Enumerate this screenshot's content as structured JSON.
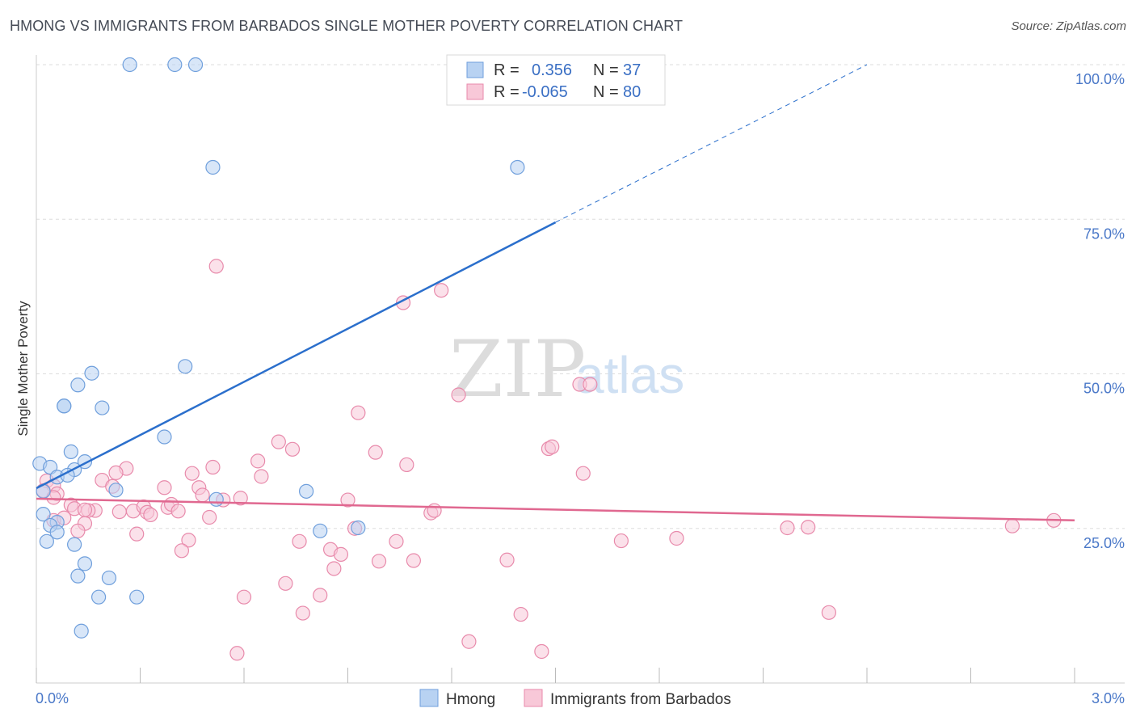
{
  "header": {
    "title": "HMONG VS IMMIGRANTS FROM BARBADOS SINGLE MOTHER POVERTY CORRELATION CHART",
    "source": "Source: ZipAtlas.com"
  },
  "watermark": {
    "zip": "ZIP",
    "atlas": "atlas"
  },
  "colors": {
    "hmong_fill": "#b8d2f2",
    "hmong_stroke": "#6f9fdc",
    "hmong_line": "#2b6fcc",
    "barbados_fill": "#f8c8d8",
    "barbados_stroke": "#e88aab",
    "barbados_line": "#e06890",
    "tick_label": "#4a78c8",
    "grid": "#dddddd"
  },
  "legend": {
    "rows": [
      {
        "r_label": "R =",
        "r_value": "0.356",
        "n_label": "N =",
        "n_value": "37"
      },
      {
        "r_label": "R =",
        "r_value": "-0.065",
        "n_label": "N =",
        "n_value": "80"
      }
    ]
  },
  "chart_data": {
    "type": "scatter",
    "title": "HMONG VS IMMIGRANTS FROM BARBADOS SINGLE MOTHER POVERTY CORRELATION CHART",
    "xlabel": "",
    "ylabel": "Single Mother Poverty",
    "xlim": [
      0,
      3.0
    ],
    "ylim": [
      0,
      105
    ],
    "x_tick_labels": [
      "0.0%",
      "3.0%"
    ],
    "y_ticks": [
      25,
      50,
      75,
      100
    ],
    "y_tick_labels": [
      "25.0%",
      "50.0%",
      "75.0%",
      "100.0%"
    ],
    "grid": true,
    "legend_position": "top-center",
    "series": [
      {
        "name": "Hmong",
        "r": 0.356,
        "n": 37,
        "trend": {
          "x": [
            0.0,
            1.5
          ],
          "y": [
            31.5,
            74.5
          ],
          "dashed_x": [
            1.5,
            2.4
          ],
          "dashed_y": [
            74.5,
            100.0
          ]
        },
        "points": [
          [
            0.27,
            100.0
          ],
          [
            0.4,
            100.0
          ],
          [
            0.46,
            100.0
          ],
          [
            0.51,
            83.4
          ],
          [
            1.39,
            83.4
          ],
          [
            0.43,
            51.2
          ],
          [
            0.16,
            50.1
          ],
          [
            0.12,
            48.2
          ],
          [
            0.08,
            44.8
          ],
          [
            0.08,
            44.8
          ],
          [
            0.19,
            44.5
          ],
          [
            0.37,
            39.8
          ],
          [
            0.1,
            37.4
          ],
          [
            0.01,
            35.5
          ],
          [
            0.14,
            35.8
          ],
          [
            0.04,
            34.9
          ],
          [
            0.11,
            34.5
          ],
          [
            0.06,
            33.3
          ],
          [
            0.09,
            33.6
          ],
          [
            0.02,
            31.0
          ],
          [
            0.23,
            31.2
          ],
          [
            0.78,
            31.0
          ],
          [
            0.52,
            29.7
          ],
          [
            0.02,
            27.3
          ],
          [
            0.06,
            26.0
          ],
          [
            0.04,
            25.5
          ],
          [
            0.06,
            24.4
          ],
          [
            0.82,
            24.6
          ],
          [
            0.93,
            25.1
          ],
          [
            0.03,
            22.9
          ],
          [
            0.11,
            22.4
          ],
          [
            0.14,
            19.3
          ],
          [
            0.12,
            17.3
          ],
          [
            0.21,
            17.0
          ],
          [
            0.18,
            13.9
          ],
          [
            0.29,
            13.9
          ],
          [
            0.13,
            8.4
          ]
        ]
      },
      {
        "name": "Immigrants from Barbados",
        "r": -0.065,
        "n": 80,
        "trend": {
          "x": [
            0.0,
            3.0
          ],
          "y": [
            29.8,
            26.3
          ]
        },
        "points": [
          [
            0.52,
            67.4
          ],
          [
            1.17,
            63.5
          ],
          [
            1.06,
            61.5
          ],
          [
            1.57,
            48.3
          ],
          [
            1.6,
            48.3
          ],
          [
            1.22,
            46.6
          ],
          [
            0.93,
            43.7
          ],
          [
            0.7,
            39.0
          ],
          [
            0.74,
            37.8
          ],
          [
            0.98,
            37.3
          ],
          [
            1.48,
            37.9
          ],
          [
            1.49,
            38.2
          ],
          [
            0.64,
            35.9
          ],
          [
            0.51,
            34.9
          ],
          [
            0.26,
            34.7
          ],
          [
            1.07,
            35.3
          ],
          [
            0.23,
            34.0
          ],
          [
            0.45,
            33.9
          ],
          [
            0.65,
            33.4
          ],
          [
            0.19,
            32.8
          ],
          [
            1.58,
            33.9
          ],
          [
            0.03,
            32.7
          ],
          [
            0.05,
            31.9
          ],
          [
            0.37,
            31.6
          ],
          [
            0.47,
            31.6
          ],
          [
            0.02,
            31.1
          ],
          [
            0.22,
            31.8
          ],
          [
            0.06,
            30.6
          ],
          [
            0.05,
            30.0
          ],
          [
            0.48,
            30.4
          ],
          [
            0.54,
            29.6
          ],
          [
            0.59,
            29.9
          ],
          [
            0.9,
            29.6
          ],
          [
            0.1,
            28.8
          ],
          [
            0.11,
            28.2
          ],
          [
            0.17,
            27.9
          ],
          [
            0.24,
            27.7
          ],
          [
            0.28,
            27.8
          ],
          [
            0.31,
            28.5
          ],
          [
            0.32,
            27.6
          ],
          [
            0.33,
            27.2
          ],
          [
            0.38,
            28.4
          ],
          [
            0.39,
            28.9
          ],
          [
            0.41,
            27.8
          ],
          [
            0.15,
            27.9
          ],
          [
            1.14,
            27.5
          ],
          [
            1.15,
            27.9
          ],
          [
            0.05,
            26.3
          ],
          [
            0.08,
            26.7
          ],
          [
            0.14,
            25.8
          ],
          [
            0.5,
            26.8
          ],
          [
            0.12,
            24.6
          ],
          [
            0.29,
            24.1
          ],
          [
            0.44,
            23.1
          ],
          [
            0.76,
            22.9
          ],
          [
            1.04,
            22.9
          ],
          [
            1.69,
            23.0
          ],
          [
            1.85,
            23.4
          ],
          [
            2.17,
            25.1
          ],
          [
            2.23,
            25.2
          ],
          [
            2.82,
            25.4
          ],
          [
            2.94,
            26.3
          ],
          [
            0.42,
            21.4
          ],
          [
            0.85,
            21.6
          ],
          [
            0.88,
            20.8
          ],
          [
            0.99,
            19.7
          ],
          [
            1.09,
            19.8
          ],
          [
            1.36,
            19.9
          ],
          [
            0.86,
            18.5
          ],
          [
            0.72,
            16.1
          ],
          [
            0.82,
            14.2
          ],
          [
            0.6,
            13.9
          ],
          [
            0.77,
            11.3
          ],
          [
            1.4,
            11.1
          ],
          [
            2.29,
            11.4
          ],
          [
            1.25,
            6.7
          ],
          [
            0.58,
            4.8
          ],
          [
            1.46,
            5.1
          ],
          [
            0.92,
            25.0
          ],
          [
            0.14,
            28.0
          ]
        ]
      }
    ]
  }
}
